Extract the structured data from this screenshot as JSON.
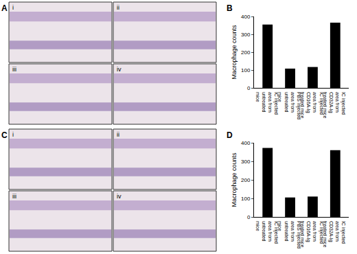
{
  "panels": [
    {
      "label": "A",
      "subpanels": [
        "i",
        "ii",
        "iii",
        "iv"
      ]
    },
    {
      "label": "C",
      "subpanels": [
        "i",
        "ii",
        "iii",
        "iv"
      ]
    }
  ],
  "chart_data": [
    {
      "type": "bar",
      "title": "B",
      "y_label": "Macrophage counts",
      "categories": [
        "IC injected area from untreated mice",
        "PBS injected area from untreated mice",
        "IC injected area from CD16A-Ig treated mice",
        "IC injected area from CD32A-Ig treated mice"
      ],
      "values": [
        355,
        108,
        117,
        365
      ],
      "color": "#000000",
      "ylim": [
        0,
        400
      ],
      "yticks": [
        0,
        100,
        200,
        300,
        400
      ],
      "grid": false
    },
    {
      "type": "bar",
      "title": "D",
      "y_label": "Macrophage counts",
      "categories": [
        "IC injected area from untreated mice",
        "PBS injected area from untreated mice",
        "IC injected area from CD16A-Ig treated mice",
        "IC injected area from CD32A-Ig treated mice"
      ],
      "values": [
        372,
        105,
        110,
        360
      ],
      "color": "#000000",
      "ylim": [
        0,
        400
      ],
      "yticks": [
        0,
        100,
        200,
        300,
        400
      ],
      "grid": false
    }
  ]
}
